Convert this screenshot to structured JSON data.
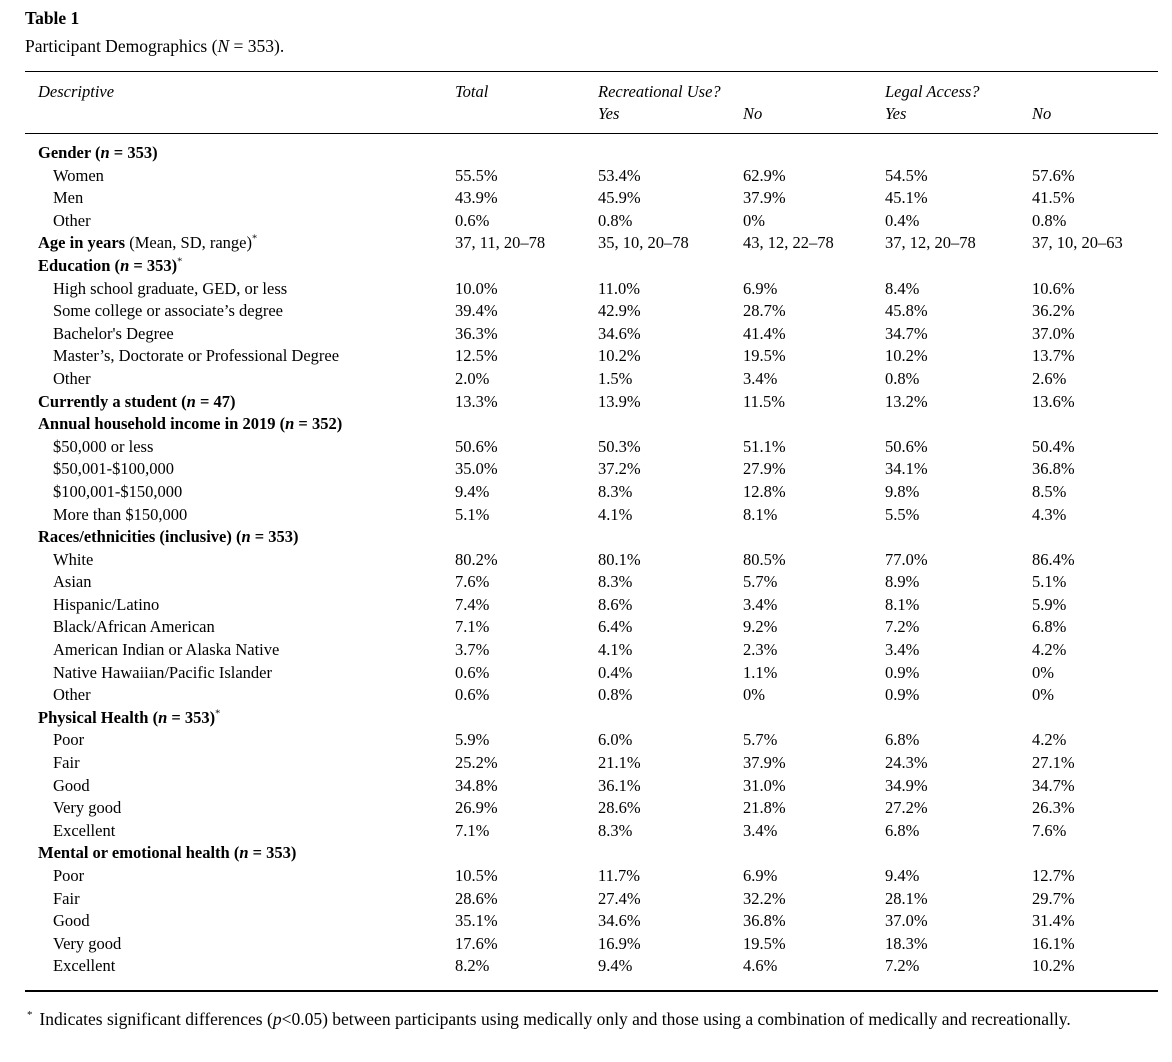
{
  "page": {
    "title": "Table 1",
    "subtitle_parts": [
      "Participant Demographics (",
      "N",
      " = 353)."
    ]
  },
  "table": {
    "col_headers": {
      "descriptive": "Descriptive",
      "total": "Total",
      "recreational": "Recreational Use?",
      "legal": "Legal Access?",
      "yes": "Yes",
      "no": "No"
    },
    "rows": [
      {
        "label_bold": "Gender (n = 353)",
        "indent": false,
        "values": []
      },
      {
        "label_regular": "Women",
        "indent": true,
        "values": [
          "55.5%",
          "53.4%",
          "62.9%",
          "54.5%",
          "57.6%"
        ]
      },
      {
        "label_regular": "Men",
        "indent": true,
        "values": [
          "43.9%",
          "45.9%",
          "37.9%",
          "45.1%",
          "41.5%"
        ]
      },
      {
        "label_regular": "Other",
        "indent": true,
        "values": [
          "0.6%",
          "0.8%",
          "0%",
          "0.4%",
          "0.8%"
        ]
      },
      {
        "label_bold": "Age in years",
        "label_regular": " (Mean, SD, range)",
        "sup": "*",
        "indent": false,
        "values": [
          "37, 11, 20–78",
          "35, 10, 20–78",
          "43, 12, 22–78",
          "37, 12, 20–78",
          "37, 10, 20–63"
        ]
      },
      {
        "label_bold": "Education (n = 353)",
        "sup": "*",
        "indent": false,
        "values": []
      },
      {
        "label_regular": "High school graduate, GED, or less",
        "indent": true,
        "values": [
          "10.0%",
          "11.0%",
          "6.9%",
          "8.4%",
          "10.6%"
        ]
      },
      {
        "label_regular": "Some college or associate’s degree",
        "indent": true,
        "values": [
          "39.4%",
          "42.9%",
          "28.7%",
          "45.8%",
          "36.2%"
        ]
      },
      {
        "label_regular": "Bachelor's Degree",
        "indent": true,
        "values": [
          "36.3%",
          "34.6%",
          "41.4%",
          "34.7%",
          "37.0%"
        ]
      },
      {
        "label_regular": "Master’s, Doctorate or Professional Degree",
        "indent": true,
        "values": [
          "12.5%",
          "10.2%",
          "19.5%",
          "10.2%",
          "13.7%"
        ]
      },
      {
        "label_regular": "Other",
        "indent": true,
        "values": [
          "2.0%",
          "1.5%",
          "3.4%",
          "0.8%",
          "2.6%"
        ]
      },
      {
        "label_bold": "Currently a student (n = 47)",
        "indent": false,
        "values": [
          "13.3%",
          "13.9%",
          "11.5%",
          "13.2%",
          "13.6%"
        ]
      },
      {
        "label_bold": "Annual household income in 2019 (n = 352)",
        "indent": false,
        "values": []
      },
      {
        "label_regular": "$50,000 or less",
        "indent": true,
        "values": [
          "50.6%",
          "50.3%",
          "51.1%",
          "50.6%",
          "50.4%"
        ]
      },
      {
        "label_regular": "$50,001-$100,000",
        "indent": true,
        "values": [
          "35.0%",
          "37.2%",
          "27.9%",
          "34.1%",
          "36.8%"
        ]
      },
      {
        "label_regular": "$100,001-$150,000",
        "indent": true,
        "values": [
          "9.4%",
          "8.3%",
          "12.8%",
          "9.8%",
          "8.5%"
        ]
      },
      {
        "label_regular": "More than $150,000",
        "indent": true,
        "values": [
          "5.1%",
          "4.1%",
          "8.1%",
          "5.5%",
          "4.3%"
        ]
      },
      {
        "label_bold": "Races/ethnicities (inclusive) (n = 353)",
        "indent": false,
        "values": []
      },
      {
        "label_regular": "White",
        "indent": true,
        "values": [
          "80.2%",
          "80.1%",
          "80.5%",
          "77.0%",
          "86.4%"
        ]
      },
      {
        "label_regular": "Asian",
        "indent": true,
        "values": [
          "7.6%",
          "8.3%",
          "5.7%",
          "8.9%",
          "5.1%"
        ]
      },
      {
        "label_regular": "Hispanic/Latino",
        "indent": true,
        "values": [
          "7.4%",
          "8.6%",
          "3.4%",
          "8.1%",
          "5.9%"
        ]
      },
      {
        "label_regular": "Black/African American",
        "indent": true,
        "values": [
          "7.1%",
          "6.4%",
          "9.2%",
          "7.2%",
          "6.8%"
        ]
      },
      {
        "label_regular": "American Indian or Alaska Native",
        "indent": true,
        "values": [
          "3.7%",
          "4.1%",
          "2.3%",
          "3.4%",
          "4.2%"
        ]
      },
      {
        "label_regular": "Native Hawaiian/Pacific Islander",
        "indent": true,
        "values": [
          "0.6%",
          "0.4%",
          "1.1%",
          "0.9%",
          "0%"
        ]
      },
      {
        "label_regular": "Other",
        "indent": true,
        "values": [
          "0.6%",
          "0.8%",
          "0%",
          "0.9%",
          "0%"
        ]
      },
      {
        "label_bold": "Physical Health (n = 353)",
        "sup": "*",
        "indent": false,
        "values": []
      },
      {
        "label_regular": "Poor",
        "indent": true,
        "values": [
          "5.9%",
          "6.0%",
          "5.7%",
          "6.8%",
          "4.2%"
        ]
      },
      {
        "label_regular": "Fair",
        "indent": true,
        "values": [
          "25.2%",
          "21.1%",
          "37.9%",
          "24.3%",
          "27.1%"
        ]
      },
      {
        "label_regular": "Good",
        "indent": true,
        "values": [
          "34.8%",
          "36.1%",
          "31.0%",
          "34.9%",
          "34.7%"
        ]
      },
      {
        "label_regular": "Very good",
        "indent": true,
        "values": [
          "26.9%",
          "28.6%",
          "21.8%",
          "27.2%",
          "26.3%"
        ]
      },
      {
        "label_regular": "Excellent",
        "indent": true,
        "values": [
          "7.1%",
          "8.3%",
          "3.4%",
          "6.8%",
          "7.6%"
        ]
      },
      {
        "label_bold": "Mental or emotional health (n = 353)",
        "indent": false,
        "values": []
      },
      {
        "label_regular": "Poor",
        "indent": true,
        "values": [
          "10.5%",
          "11.7%",
          "6.9%",
          "9.4%",
          "12.7%"
        ]
      },
      {
        "label_regular": "Fair",
        "indent": true,
        "values": [
          "28.6%",
          "27.4%",
          "32.2%",
          "28.1%",
          "29.7%"
        ]
      },
      {
        "label_regular": "Good",
        "indent": true,
        "values": [
          "35.1%",
          "34.6%",
          "36.8%",
          "37.0%",
          "31.4%"
        ]
      },
      {
        "label_regular": "Very good",
        "indent": true,
        "values": [
          "17.6%",
          "16.9%",
          "19.5%",
          "18.3%",
          "16.1%"
        ]
      },
      {
        "label_regular": "Excellent",
        "indent": true,
        "values": [
          "8.2%",
          "9.4%",
          "4.6%",
          "7.2%",
          "10.2%"
        ]
      }
    ]
  },
  "footnote": {
    "marker": "*",
    "parts": [
      "Indicates significant differences (",
      "p",
      "<0.05) between participants using medically only and those using a combination of medically and recreationally."
    ]
  },
  "colors": {
    "text": "#000000",
    "background": "#ffffff",
    "rule": "#000000"
  }
}
